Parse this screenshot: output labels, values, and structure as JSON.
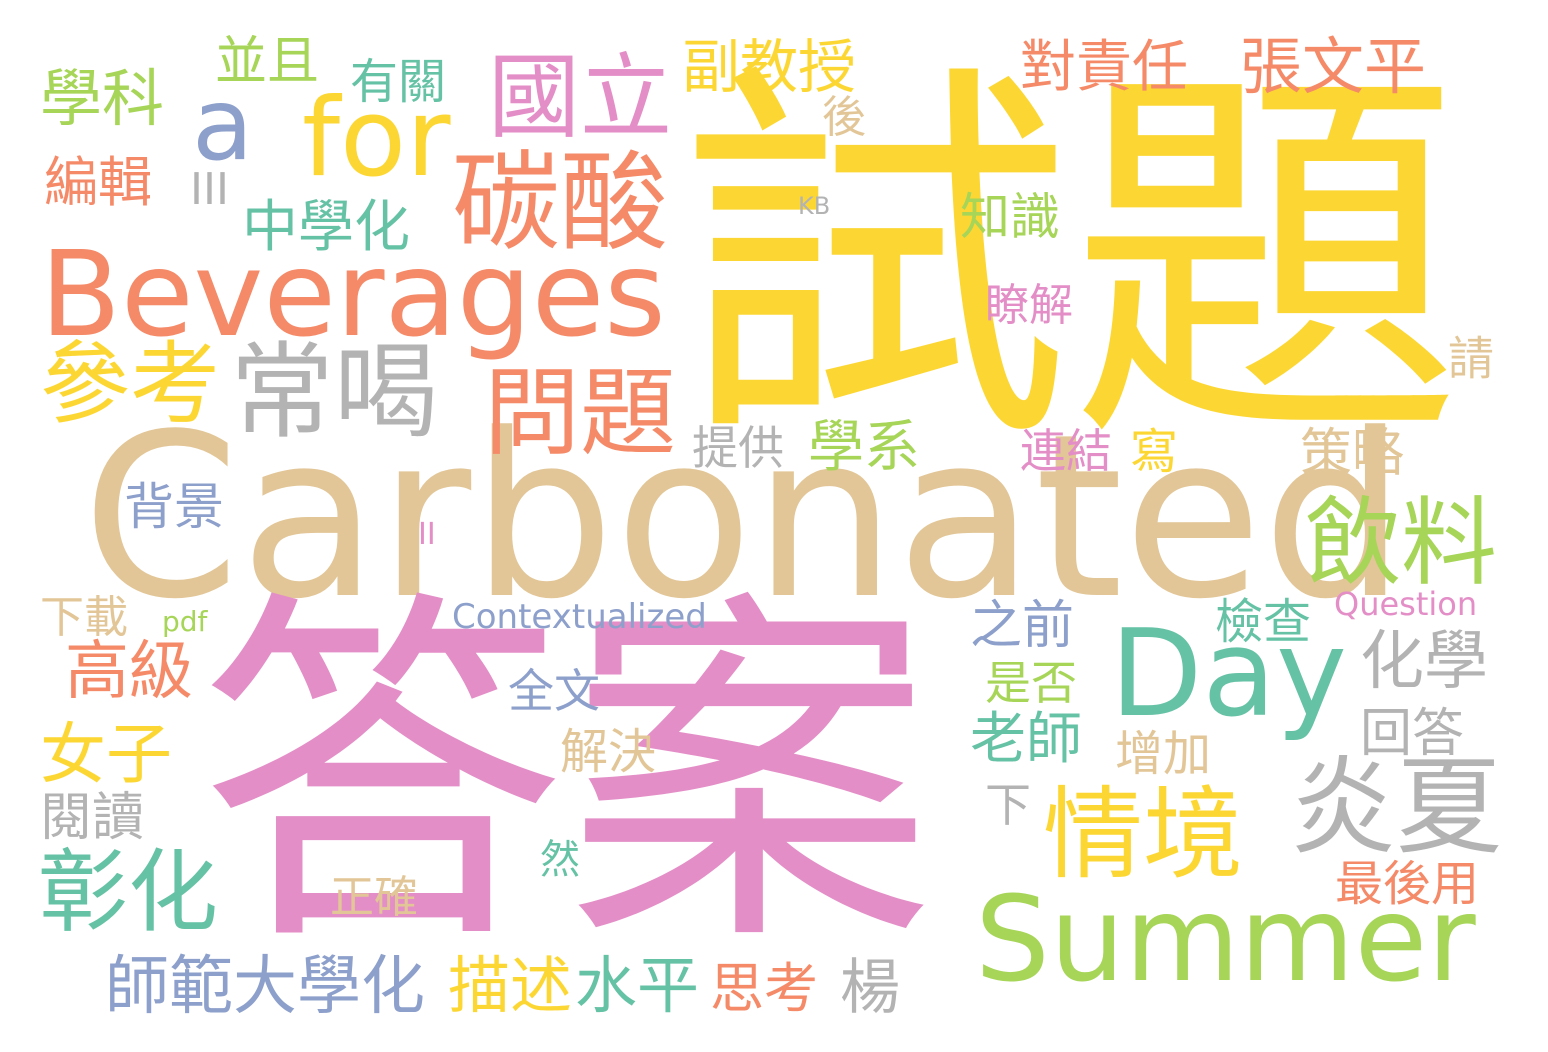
{
  "palette": {
    "yellow": "#fcd734",
    "tan": "#e2c697",
    "pink": "#e48ec7",
    "orange": "#f58a68",
    "green": "#a6d558",
    "teal": "#66c2a5",
    "blue": "#8da0cb",
    "gray": "#b3b3b3"
  },
  "words": {
    "shiti": "試題",
    "carbonated": "Carbonated",
    "daan": "答案",
    "summer": "Summer",
    "beverages": "Beverages",
    "day": "Day",
    "for": "for",
    "a": "a",
    "guoli": "國立",
    "tansuan": "碳酸",
    "changhe": "常喝",
    "cankao": "參考",
    "wenti": "問題",
    "yinliao": "飲料",
    "qingjing": "情境",
    "yanxia": "炎夏",
    "zhanghua": "彰化",
    "xuekē": "學科",
    "bingqie": "並且",
    "youguan": "有關",
    "fujiaoshou": "副教授",
    "duizeren": "對責任",
    "zhangwenping": "張文平",
    "bianji": "編輯",
    "iii": "III",
    "zhongxuehua": "中學化",
    "hou": "後",
    "kb": "KB",
    "zhishi": "知識",
    "liaojie": "瞭解",
    "qing": "請",
    "tigong": "提供",
    "xuexi": "學系",
    "lianjie": "連結",
    "xie": "寫",
    "celue": "策略",
    "beijing": "背景",
    "ii": "II",
    "xiazai": "下載",
    "pdf": "pdf",
    "contextualized": "Contextualized",
    "question": "Question",
    "jiancha": "檢查",
    "zhiqian": "之前",
    "huaxue": "化學",
    "gaoji": "高級",
    "quanwen": "全文",
    "shifou": "是否",
    "laoshi": "老師",
    "huida": "回答",
    "nvzi": "女子",
    "jiejue": "解決",
    "zengjia": "增加",
    "yuedu": "閱讀",
    "xia": "下",
    "ran": "然",
    "zuihouyong": "最後用",
    "zhengque": "正確",
    "shifandaxuehua": "師範大學化",
    "miaoshu": "描述",
    "shuiping": "水平",
    "sikao": "思考",
    "yang": "楊"
  }
}
